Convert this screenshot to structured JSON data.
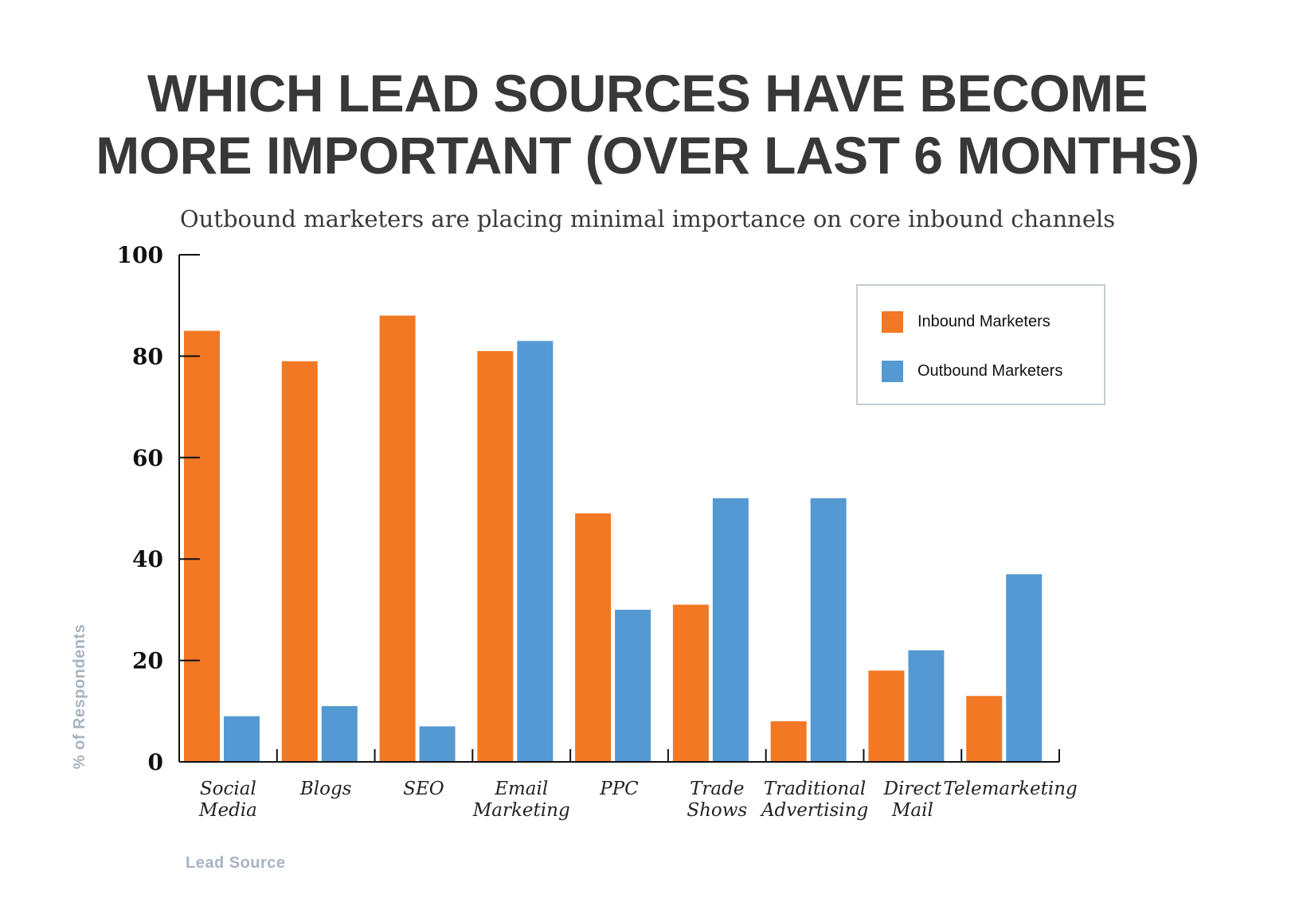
{
  "title_line1": "WHICH LEAD SOURCES HAVE BECOME",
  "title_line2": "MORE IMPORTANT (OVER LAST 6 MONTHS)",
  "subtitle": "Outbound marketers are placing minimal importance on core inbound channels",
  "colors": {
    "inbound": "#f27823",
    "outbound": "#5599d3",
    "axis": "#111111",
    "axis_title": "#a9b3c1"
  },
  "legend": {
    "inbound_label": "Inbound Marketers",
    "outbound_label": "Outbound Marketers"
  },
  "chart_data": {
    "type": "bar",
    "title": "WHICH LEAD SOURCES HAVE BECOME MORE IMPORTANT (OVER LAST 6 MONTHS)",
    "subtitle": "Outbound marketers are placing minimal importance on core inbound channels",
    "xlabel": "Lead Source",
    "ylabel": "% of Respondents",
    "ylim": [
      0,
      100
    ],
    "yticks": [
      0,
      20,
      40,
      60,
      80,
      100
    ],
    "grid": false,
    "legend_position": "top-right",
    "categories": [
      [
        "Social",
        "Media"
      ],
      [
        "Blogs"
      ],
      [
        "SEO"
      ],
      [
        "Email",
        "Marketing"
      ],
      [
        "PPC"
      ],
      [
        "Trade",
        "Shows"
      ],
      [
        "Traditional",
        "Advertising"
      ],
      [
        "Direct",
        "Mail"
      ],
      [
        "Telemarketing"
      ]
    ],
    "series": [
      {
        "name": "Inbound Marketers",
        "values": [
          85,
          79,
          88,
          81,
          49,
          31,
          8,
          18,
          13
        ]
      },
      {
        "name": "Outbound Marketers",
        "values": [
          9,
          11,
          7,
          83,
          30,
          52,
          52,
          22,
          37
        ]
      }
    ]
  }
}
